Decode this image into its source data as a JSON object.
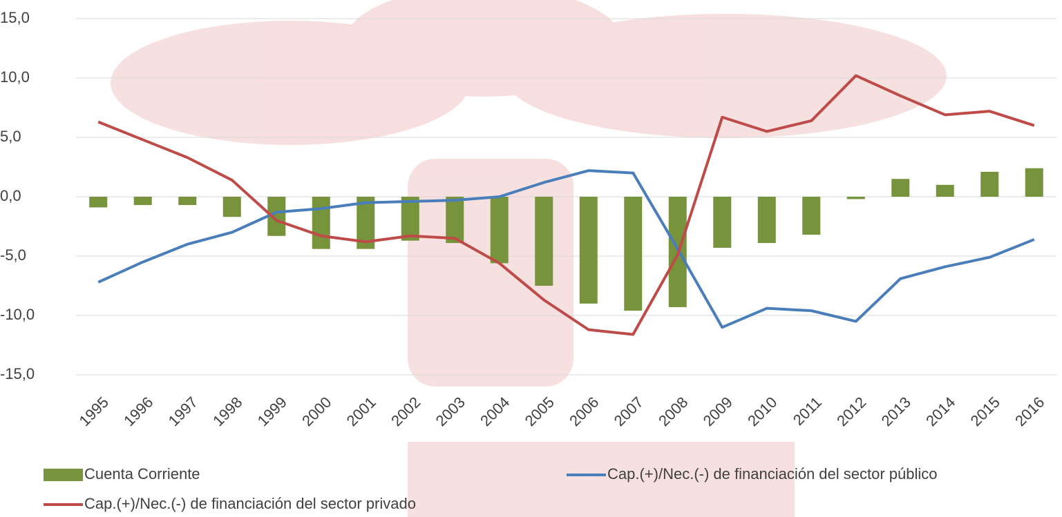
{
  "chart_data": {
    "type": "bar",
    "categories": [
      "1995",
      "1996",
      "1997",
      "1998",
      "1999",
      "2000",
      "2001",
      "2002",
      "2003",
      "2004",
      "2005",
      "2006",
      "2007",
      "2008",
      "2009",
      "2010",
      "2011",
      "2012",
      "2013",
      "2014",
      "2015",
      "2016"
    ],
    "series": [
      {
        "name": "Cuenta Corriente",
        "type": "bar",
        "color": "#77933c",
        "values": [
          -0.9,
          -0.7,
          -0.7,
          -1.7,
          -3.3,
          -4.4,
          -4.4,
          -3.7,
          -3.9,
          -5.6,
          -7.5,
          -9.0,
          -9.6,
          -9.3,
          -4.3,
          -3.9,
          -3.2,
          -0.2,
          1.5,
          1.0,
          2.1,
          2.4
        ]
      },
      {
        "name": "Cap.(+)/Nec.(-) de financiación del sector público",
        "type": "line",
        "color": "#4a7ebb",
        "values": [
          -7.2,
          -5.5,
          -4.0,
          -3.0,
          -1.3,
          -1.0,
          -0.5,
          -0.4,
          -0.3,
          0.0,
          1.2,
          2.2,
          2.0,
          -4.4,
          -11.0,
          -9.4,
          -9.6,
          -10.5,
          -6.9,
          -5.9,
          -5.1,
          -3.6
        ]
      },
      {
        "name": "Cap.(+)/Nec.(-) de financiación del sector privado",
        "type": "line",
        "color": "#be4b48",
        "values": [
          6.3,
          4.8,
          3.3,
          1.4,
          -2.0,
          -3.3,
          -3.8,
          -3.3,
          -3.5,
          -5.6,
          -8.7,
          -11.2,
          -11.6,
          -4.9,
          6.7,
          5.5,
          6.4,
          10.2,
          8.5,
          6.9,
          7.2,
          6.0
        ]
      }
    ],
    "ylim": [
      -15,
      15
    ],
    "yticks": [
      {
        "value": -15,
        "label": "-15,0"
      },
      {
        "value": -10,
        "label": "-10,0"
      },
      {
        "value": -5,
        "label": "-5,0"
      },
      {
        "value": 0,
        "label": "0,0"
      },
      {
        "value": 5,
        "label": "5,0"
      },
      {
        "value": 10,
        "label": "10,0"
      },
      {
        "value": 15,
        "label": "15,0"
      }
    ],
    "grid": true
  }
}
